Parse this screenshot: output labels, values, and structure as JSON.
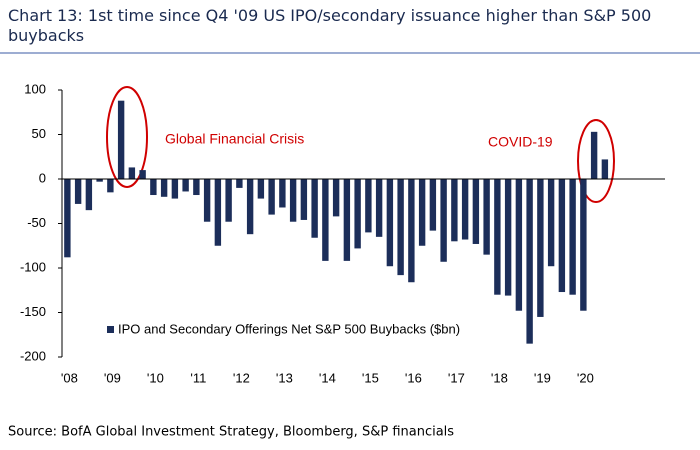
{
  "chart_data": {
    "type": "bar",
    "title": "Chart 13: 1st time since Q4 '09 US IPO/secondary issuance higher than S&P 500 buybacks",
    "categories": [
      "'08",
      null,
      null,
      null,
      "'09",
      null,
      null,
      null,
      "'10",
      null,
      null,
      null,
      "'11",
      null,
      null,
      null,
      "'12",
      null,
      null,
      null,
      "'13",
      null,
      null,
      null,
      "'14",
      null,
      null,
      null,
      "'15",
      null,
      null,
      null,
      "'16",
      null,
      null,
      null,
      "'17",
      null,
      null,
      null,
      "'18",
      null,
      null,
      null,
      "'19",
      null,
      null,
      null,
      "'20",
      null,
      null
    ],
    "series": [
      {
        "name": "IPO and Secondary Offerings Net S&P 500 Buybacks ($bn)",
        "color": "#1c2e5a",
        "values": [
          -88,
          -28,
          -35,
          -3,
          -15,
          88,
          13,
          10,
          -18,
          -20,
          -22,
          -14,
          -18,
          -48,
          -75,
          -48,
          -10,
          -62,
          -22,
          -40,
          -32,
          -48,
          -46,
          -66,
          -92,
          -42,
          -92,
          -78,
          -60,
          -65,
          -98,
          -108,
          -116,
          -75,
          -58,
          -93,
          -70,
          -68,
          -73,
          -85,
          -130,
          -131,
          -148,
          -185,
          -155,
          -98,
          -127,
          -130,
          -148,
          53,
          22
        ]
      }
    ],
    "ylim": [
      -200,
      100
    ],
    "yticks": [
      -200,
      -150,
      -100,
      -50,
      0,
      50,
      100
    ],
    "annotations": [
      "Global Financial Crisis",
      "COVID-19"
    ],
    "source": "Source: BofA Global Investment Strategy, Bloomberg, S&P financials"
  }
}
